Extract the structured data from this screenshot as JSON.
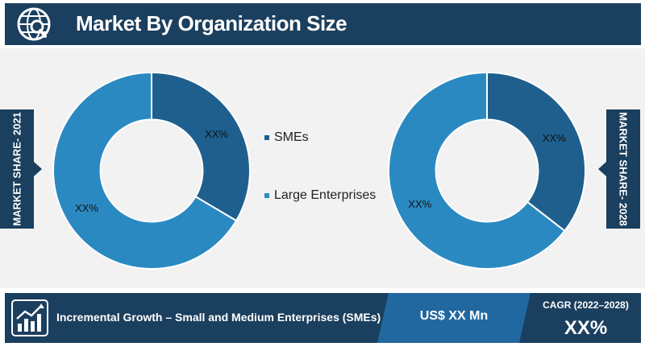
{
  "header": {
    "title": "Market By Organization Size"
  },
  "side_tabs": {
    "left": "MARKET SHARE- 2021",
    "right": "MARKET SHARE- 2028"
  },
  "colors": {
    "navy": "#1b3f5e",
    "sme": "#1e5f8e",
    "large": "#2b89c2",
    "footer_mid": "#2268a0"
  },
  "icons": {
    "header": "magnifier-globe-icon",
    "footer": "growth-chart-icon"
  },
  "chart_data": [
    {
      "type": "pie",
      "title": "MARKET SHARE- 2021",
      "categories": [
        "SMEs",
        "Large Enterprises"
      ],
      "values": [
        0.335,
        0.665
      ],
      "labels": [
        "XX%",
        "XX%"
      ],
      "hole": 0.52,
      "legend": "right"
    },
    {
      "type": "pie",
      "title": "MARKET SHARE- 2028",
      "categories": [
        "SMEs",
        "Large Enterprises"
      ],
      "values": [
        0.355,
        0.645
      ],
      "labels": [
        "XX%",
        "XX%"
      ],
      "hole": 0.52,
      "legend": "left"
    }
  ],
  "legend": {
    "items": [
      "SMEs",
      "Large Enterprises"
    ]
  },
  "footer": {
    "growth_label": "Incremental Growth – Small and Medium Enterprises (SMEs)",
    "value": "US$ XX Mn",
    "cagr_label": "CAGR (2022–2028)",
    "cagr_value": "XX%"
  }
}
